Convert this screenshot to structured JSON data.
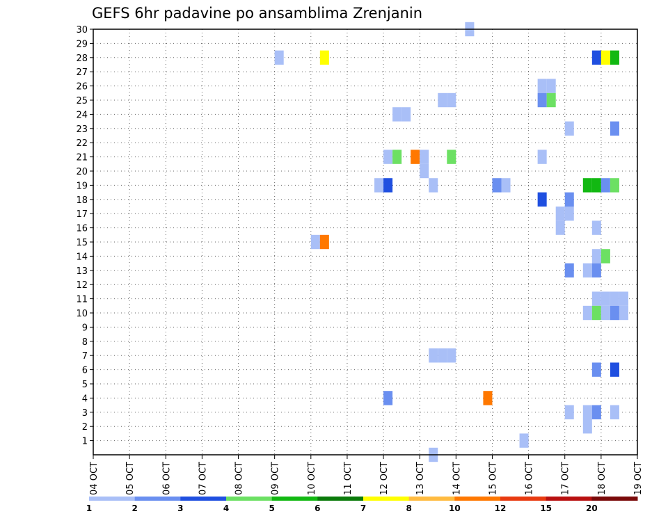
{
  "chart_data": {
    "type": "heatmap",
    "title": "GEFS 6hr padavine po ansamblima Zrenjanin",
    "xlabel": "",
    "ylabel": "",
    "x_ticks": [
      "04 OCT",
      "05 OCT",
      "06 OCT",
      "07 OCT",
      "08 OCT",
      "09 OCT",
      "10 OCT",
      "11 OCT",
      "12 OCT",
      "13 OCT",
      "14 OCT",
      "15 OCT",
      "16 OCT",
      "17 OCT",
      "18 OCT",
      "19 OCT"
    ],
    "x_unit": "days since 04 OCT 00z, 6-hour steps",
    "xlim": [
      0,
      15
    ],
    "y_ticks": [
      1,
      2,
      3,
      4,
      5,
      6,
      7,
      8,
      9,
      10,
      11,
      12,
      13,
      14,
      15,
      16,
      17,
      18,
      19,
      20,
      21,
      22,
      23,
      24,
      25,
      26,
      27,
      28,
      29,
      30
    ],
    "ylim": [
      0,
      30
    ],
    "grid": true,
    "legend": {
      "placement": "bottom",
      "labels": [
        "1",
        "2",
        "3",
        "4",
        "5",
        "6",
        "7",
        "8",
        "10",
        "12",
        "15",
        "20"
      ],
      "colors": [
        "#a9bff7",
        "#6a8ff0",
        "#1f4fe0",
        "#6ce063",
        "#12b812",
        "#0a7a0a",
        "#ffff00",
        "#ffbb40",
        "#ff7800",
        "#e83a10",
        "#b81010",
        "#7a0a0a"
      ]
    },
    "cells": [
      {
        "x": 5.0,
        "y": 28,
        "c": 0
      },
      {
        "x": 6.25,
        "y": 28,
        "c": 6
      },
      {
        "x": 13.75,
        "y": 28,
        "c": 2
      },
      {
        "x": 14.0,
        "y": 28,
        "c": 6
      },
      {
        "x": 14.25,
        "y": 28,
        "c": 4
      },
      {
        "x": 10.25,
        "y": 30,
        "c": 0
      },
      {
        "x": 12.25,
        "y": 26,
        "c": 0
      },
      {
        "x": 12.5,
        "y": 26,
        "c": 0
      },
      {
        "x": 9.5,
        "y": 25,
        "c": 0
      },
      {
        "x": 9.75,
        "y": 25,
        "c": 0
      },
      {
        "x": 12.25,
        "y": 25,
        "c": 1
      },
      {
        "x": 12.5,
        "y": 25,
        "c": 3
      },
      {
        "x": 8.25,
        "y": 24,
        "c": 0
      },
      {
        "x": 8.5,
        "y": 24,
        "c": 0
      },
      {
        "x": 13.0,
        "y": 23,
        "c": 0
      },
      {
        "x": 14.25,
        "y": 23,
        "c": 1
      },
      {
        "x": 8.0,
        "y": 21,
        "c": 0
      },
      {
        "x": 8.25,
        "y": 21,
        "c": 3
      },
      {
        "x": 8.75,
        "y": 21,
        "c": 8
      },
      {
        "x": 9.0,
        "y": 21,
        "c": 0
      },
      {
        "x": 9.75,
        "y": 21,
        "c": 3
      },
      {
        "x": 12.25,
        "y": 21,
        "c": 0
      },
      {
        "x": 9.0,
        "y": 20,
        "c": 0
      },
      {
        "x": 7.75,
        "y": 19,
        "c": 0
      },
      {
        "x": 8.0,
        "y": 19,
        "c": 2
      },
      {
        "x": 9.25,
        "y": 19,
        "c": 0
      },
      {
        "x": 11.0,
        "y": 19,
        "c": 1
      },
      {
        "x": 11.25,
        "y": 19,
        "c": 0
      },
      {
        "x": 13.5,
        "y": 19,
        "c": 4
      },
      {
        "x": 13.75,
        "y": 19,
        "c": 4
      },
      {
        "x": 14.0,
        "y": 19,
        "c": 1
      },
      {
        "x": 14.25,
        "y": 19,
        "c": 3
      },
      {
        "x": 12.25,
        "y": 18,
        "c": 2
      },
      {
        "x": 13.0,
        "y": 18,
        "c": 1
      },
      {
        "x": 12.75,
        "y": 17,
        "c": 0
      },
      {
        "x": 13.0,
        "y": 17,
        "c": 0
      },
      {
        "x": 12.75,
        "y": 16,
        "c": 0
      },
      {
        "x": 13.75,
        "y": 16,
        "c": 0
      },
      {
        "x": 6.0,
        "y": 15,
        "c": 0
      },
      {
        "x": 6.25,
        "y": 15,
        "c": 8
      },
      {
        "x": 13.75,
        "y": 14,
        "c": 0
      },
      {
        "x": 14.0,
        "y": 14,
        "c": 3
      },
      {
        "x": 13.0,
        "y": 13,
        "c": 1
      },
      {
        "x": 13.5,
        "y": 13,
        "c": 0
      },
      {
        "x": 13.75,
        "y": 13,
        "c": 1
      },
      {
        "x": 13.75,
        "y": 11,
        "c": 0
      },
      {
        "x": 14.0,
        "y": 11,
        "c": 0
      },
      {
        "x": 14.25,
        "y": 11,
        "c": 0
      },
      {
        "x": 14.5,
        "y": 11,
        "c": 0
      },
      {
        "x": 13.5,
        "y": 10,
        "c": 0
      },
      {
        "x": 13.75,
        "y": 10,
        "c": 3
      },
      {
        "x": 14.0,
        "y": 10,
        "c": 0
      },
      {
        "x": 14.25,
        "y": 10,
        "c": 1
      },
      {
        "x": 14.5,
        "y": 10,
        "c": 0
      },
      {
        "x": 9.25,
        "y": 7,
        "c": 0
      },
      {
        "x": 9.5,
        "y": 7,
        "c": 0
      },
      {
        "x": 9.75,
        "y": 7,
        "c": 0
      },
      {
        "x": 13.75,
        "y": 6,
        "c": 1
      },
      {
        "x": 14.25,
        "y": 6,
        "c": 2
      },
      {
        "x": 8.0,
        "y": 4,
        "c": 1
      },
      {
        "x": 10.75,
        "y": 4,
        "c": 8
      },
      {
        "x": 13.0,
        "y": 3,
        "c": 0
      },
      {
        "x": 13.5,
        "y": 3,
        "c": 0
      },
      {
        "x": 13.75,
        "y": 3,
        "c": 1
      },
      {
        "x": 14.25,
        "y": 3,
        "c": 0
      },
      {
        "x": 13.5,
        "y": 2,
        "c": 0
      },
      {
        "x": 11.75,
        "y": 1,
        "c": 0
      },
      {
        "x": 9.25,
        "y": 0,
        "c": 0
      }
    ]
  }
}
